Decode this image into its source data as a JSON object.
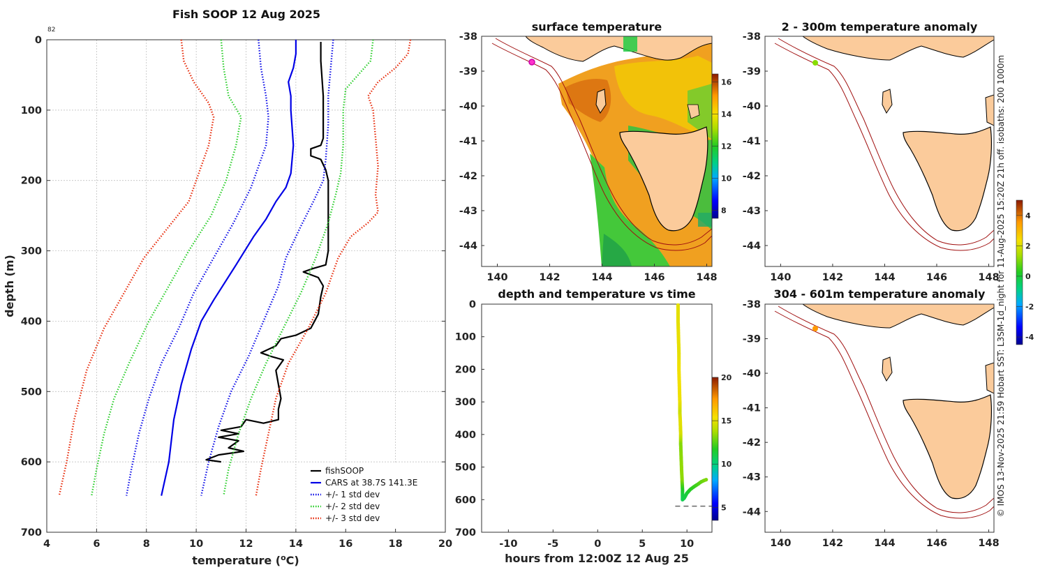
{
  "small_label": "82",
  "credit": "© IMOS 13-Nov-2025 21:59 Hobart SST: L3SM-1d_night for 11-Aug-2025 15:20Z 21h off. isobaths: 200  1000m",
  "colors": {
    "fishsoop": "#000000",
    "cars": "#0000e6",
    "std1": "#0000e6",
    "std2": "#22cc22",
    "std3": "#e62200",
    "land": "#fbcb9b",
    "isobath": "#a01010"
  },
  "chart_data": [
    {
      "id": "profile",
      "type": "line",
      "title": "Fish SOOP 12 Aug 2025",
      "xlabel_main": "temperature (",
      "xlabel_sup": "o",
      "xlabel_end": "C)",
      "ylabel": "depth (m)",
      "xlim": [
        4,
        20
      ],
      "ylim": [
        0,
        700
      ],
      "xticks": [
        "4",
        "6",
        "8",
        "10",
        "12",
        "14",
        "16",
        "18",
        "20"
      ],
      "yticks": [
        "0",
        "100",
        "200",
        "300",
        "400",
        "500",
        "600",
        "700"
      ],
      "legend": [
        "fishSOOP",
        "CARS at 38.7S 141.3E",
        "+/- 1 std dev",
        "+/- 2 std dev",
        "+/- 3 std dev"
      ],
      "series": [
        {
          "name": "fishSOOP",
          "style": "solid",
          "color": "fishsoop",
          "points": [
            [
              15.0,
              3
            ],
            [
              15.0,
              30
            ],
            [
              15.1,
              80
            ],
            [
              15.1,
              140
            ],
            [
              15.0,
              150
            ],
            [
              14.6,
              155
            ],
            [
              14.6,
              165
            ],
            [
              15.0,
              170
            ],
            [
              15.2,
              185
            ],
            [
              15.3,
              200
            ],
            [
              15.3,
              240
            ],
            [
              15.3,
              300
            ],
            [
              15.2,
              320
            ],
            [
              14.7,
              325
            ],
            [
              14.3,
              330
            ],
            [
              14.9,
              338
            ],
            [
              15.1,
              350
            ],
            [
              15.0,
              365
            ],
            [
              14.9,
              390
            ],
            [
              14.6,
              410
            ],
            [
              14.0,
              420
            ],
            [
              13.4,
              425
            ],
            [
              13.2,
              435
            ],
            [
              12.6,
              445
            ],
            [
              13.0,
              450
            ],
            [
              13.5,
              455
            ],
            [
              13.2,
              470
            ],
            [
              13.3,
              490
            ],
            [
              13.4,
              510
            ],
            [
              13.3,
              525
            ],
            [
              13.3,
              540
            ],
            [
              12.7,
              545
            ],
            [
              12.0,
              540
            ],
            [
              11.8,
              550
            ],
            [
              11.0,
              555
            ],
            [
              11.7,
              560
            ],
            [
              10.9,
              565
            ],
            [
              11.7,
              570
            ],
            [
              11.3,
              580
            ],
            [
              11.9,
              585
            ],
            [
              10.9,
              590
            ],
            [
              10.4,
              597
            ],
            [
              11.0,
              600
            ]
          ]
        },
        {
          "name": "CARS",
          "style": "solid",
          "color": "cars",
          "points": [
            [
              14.0,
              0
            ],
            [
              14.0,
              20
            ],
            [
              13.9,
              40
            ],
            [
              13.7,
              60
            ],
            [
              13.8,
              80
            ],
            [
              13.8,
              100
            ],
            [
              13.9,
              150
            ],
            [
              13.8,
              190
            ],
            [
              13.6,
              210
            ],
            [
              13.2,
              230
            ],
            [
              12.8,
              255
            ],
            [
              12.3,
              280
            ],
            [
              11.6,
              320
            ],
            [
              10.7,
              370
            ],
            [
              10.2,
              400
            ],
            [
              9.8,
              440
            ],
            [
              9.4,
              490
            ],
            [
              9.1,
              540
            ],
            [
              8.9,
              600
            ],
            [
              8.6,
              648
            ]
          ]
        },
        {
          "name": "+1 std",
          "style": "dotted",
          "color": "std1",
          "points": [
            [
              15.5,
              0
            ],
            [
              15.4,
              40
            ],
            [
              15.3,
              80
            ],
            [
              15.3,
              120
            ],
            [
              15.2,
              170
            ],
            [
              15.1,
              200
            ],
            [
              14.7,
              230
            ],
            [
              14.2,
              265
            ],
            [
              13.6,
              310
            ],
            [
              13.3,
              350
            ],
            [
              12.7,
              400
            ],
            [
              12.1,
              450
            ],
            [
              11.4,
              500
            ],
            [
              10.9,
              550
            ],
            [
              10.5,
              600
            ],
            [
              10.2,
              648
            ]
          ]
        },
        {
          "name": "-1 std",
          "style": "dotted",
          "color": "std1",
          "points": [
            [
              12.5,
              0
            ],
            [
              12.6,
              40
            ],
            [
              12.8,
              80
            ],
            [
              12.9,
              110
            ],
            [
              12.8,
              150
            ],
            [
              12.2,
              210
            ],
            [
              11.5,
              260
            ],
            [
              10.7,
              310
            ],
            [
              9.9,
              360
            ],
            [
              9.3,
              410
            ],
            [
              8.6,
              460
            ],
            [
              8.1,
              510
            ],
            [
              7.7,
              560
            ],
            [
              7.4,
              610
            ],
            [
              7.2,
              648
            ]
          ]
        },
        {
          "name": "+2 std",
          "style": "dotted",
          "color": "std2",
          "points": [
            [
              17.1,
              0
            ],
            [
              17.0,
              30
            ],
            [
              16.5,
              50
            ],
            [
              16.0,
              70
            ],
            [
              15.9,
              100
            ],
            [
              15.9,
              150
            ],
            [
              15.8,
              190
            ],
            [
              15.6,
              220
            ],
            [
              15.3,
              260
            ],
            [
              14.8,
              310
            ],
            [
              14.2,
              360
            ],
            [
              13.5,
              410
            ],
            [
              12.8,
              460
            ],
            [
              12.2,
              510
            ],
            [
              11.7,
              560
            ],
            [
              11.3,
              610
            ],
            [
              11.1,
              648
            ]
          ]
        },
        {
          "name": "-2 std",
          "style": "dotted",
          "color": "std2",
          "points": [
            [
              11.0,
              0
            ],
            [
              11.1,
              40
            ],
            [
              11.3,
              80
            ],
            [
              11.8,
              110
            ],
            [
              11.6,
              150
            ],
            [
              11.2,
              200
            ],
            [
              10.6,
              250
            ],
            [
              9.7,
              300
            ],
            [
              8.9,
              350
            ],
            [
              8.1,
              400
            ],
            [
              7.3,
              460
            ],
            [
              6.7,
              510
            ],
            [
              6.3,
              560
            ],
            [
              6.0,
              610
            ],
            [
              5.8,
              648
            ]
          ]
        },
        {
          "name": "+3 std",
          "style": "dotted",
          "color": "std3",
          "points": [
            [
              18.6,
              0
            ],
            [
              18.5,
              20
            ],
            [
              18.0,
              40
            ],
            [
              17.3,
              60
            ],
            [
              16.9,
              80
            ],
            [
              17.1,
              100
            ],
            [
              17.2,
              140
            ],
            [
              17.3,
              180
            ],
            [
              17.2,
              220
            ],
            [
              17.3,
              245
            ],
            [
              16.9,
              260
            ],
            [
              16.2,
              280
            ],
            [
              15.7,
              310
            ],
            [
              15.2,
              360
            ],
            [
              14.5,
              410
            ],
            [
              13.7,
              460
            ],
            [
              13.2,
              510
            ],
            [
              12.9,
              560
            ],
            [
              12.6,
              610
            ],
            [
              12.4,
              648
            ]
          ]
        },
        {
          "name": "-3 std",
          "style": "dotted",
          "color": "std3",
          "points": [
            [
              9.4,
              0
            ],
            [
              9.5,
              30
            ],
            [
              9.9,
              60
            ],
            [
              10.5,
              90
            ],
            [
              10.7,
              110
            ],
            [
              10.5,
              150
            ],
            [
              10.1,
              190
            ],
            [
              9.7,
              230
            ],
            [
              8.8,
              270
            ],
            [
              7.9,
              310
            ],
            [
              7.1,
              360
            ],
            [
              6.3,
              410
            ],
            [
              5.6,
              470
            ],
            [
              5.1,
              540
            ],
            [
              4.8,
              600
            ],
            [
              4.5,
              648
            ]
          ]
        }
      ]
    },
    {
      "id": "sst",
      "type": "heatmap",
      "title": "surface temperature",
      "xticks": [
        "140",
        "142",
        "144",
        "146",
        "148"
      ],
      "yticks": [
        "-38",
        "-39",
        "-40",
        "-41",
        "-42",
        "-43",
        "-44"
      ],
      "xlim": [
        139.4,
        148.2
      ],
      "ylim": [
        -44.6,
        -38
      ],
      "colorbar_ticks": [
        "8",
        "10",
        "12",
        "14",
        "16"
      ],
      "colorbar_range": [
        7.5,
        16.5
      ]
    },
    {
      "id": "time",
      "type": "scatter",
      "title": "depth and temperature vs time",
      "xlabel": "hours from 12:00Z 12 Aug 25",
      "xticks": [
        "-10",
        "-5",
        "0",
        "5",
        "10"
      ],
      "yticks": [
        "0",
        "100",
        "200",
        "300",
        "400",
        "500",
        "600",
        "700"
      ],
      "xlim": [
        -13,
        12.8
      ],
      "ylim": [
        0,
        700
      ],
      "colorbar_ticks": [
        "5",
        "10",
        "15",
        "20"
      ],
      "colorbar_range": [
        3.5,
        20
      ],
      "bottom_depth": 620,
      "points": [
        [
          9.0,
          3,
          15.0
        ],
        [
          9.0,
          50,
          15.0
        ],
        [
          9.05,
          100,
          15.1
        ],
        [
          9.1,
          150,
          15.0
        ],
        [
          9.1,
          200,
          15.3
        ],
        [
          9.15,
          250,
          15.3
        ],
        [
          9.2,
          300,
          15.2
        ],
        [
          9.2,
          330,
          14.5
        ],
        [
          9.25,
          360,
          15.0
        ],
        [
          9.3,
          400,
          14.7
        ],
        [
          9.3,
          430,
          13.2
        ],
        [
          9.35,
          470,
          13.3
        ],
        [
          9.4,
          510,
          13.4
        ],
        [
          9.45,
          540,
          13.3
        ],
        [
          9.5,
          570,
          11.7
        ],
        [
          9.5,
          600,
          10.8
        ],
        [
          9.7,
          595,
          11.0
        ],
        [
          10.0,
          580,
          11.3
        ],
        [
          10.4,
          568,
          11.8
        ],
        [
          10.8,
          560,
          12.0
        ],
        [
          11.2,
          553,
          12.3
        ],
        [
          11.6,
          545,
          12.7
        ],
        [
          12.0,
          540,
          13.0
        ],
        [
          12.3,
          537,
          13.2
        ]
      ]
    },
    {
      "id": "anom1",
      "type": "scatter",
      "title": "2 - 300m temperature anomaly",
      "xticks": [
        "140",
        "142",
        "144",
        "146",
        "148"
      ],
      "yticks": [
        "-38",
        "-39",
        "-40",
        "-41",
        "-42",
        "-43",
        "-44"
      ],
      "xlim": [
        139.4,
        148.2
      ],
      "ylim": [
        -44.6,
        -38
      ],
      "points": [
        [
          141.3,
          -38.75,
          1.2
        ]
      ]
    },
    {
      "id": "anom2",
      "type": "scatter",
      "title": "304 - 601m temperature anomaly",
      "xticks": [
        "140",
        "142",
        "144",
        "146",
        "148"
      ],
      "yticks": [
        "-38",
        "-39",
        "-40",
        "-41",
        "-42",
        "-43",
        "-44"
      ],
      "xlim": [
        139.4,
        148.2
      ],
      "ylim": [
        -44.6,
        -38
      ],
      "points": [
        [
          141.3,
          -38.75,
          3.0
        ]
      ],
      "colorbar_ticks": [
        "4",
        "2",
        "0",
        "-2",
        "-4"
      ],
      "colorbar_range": [
        -4.5,
        5
      ]
    }
  ]
}
